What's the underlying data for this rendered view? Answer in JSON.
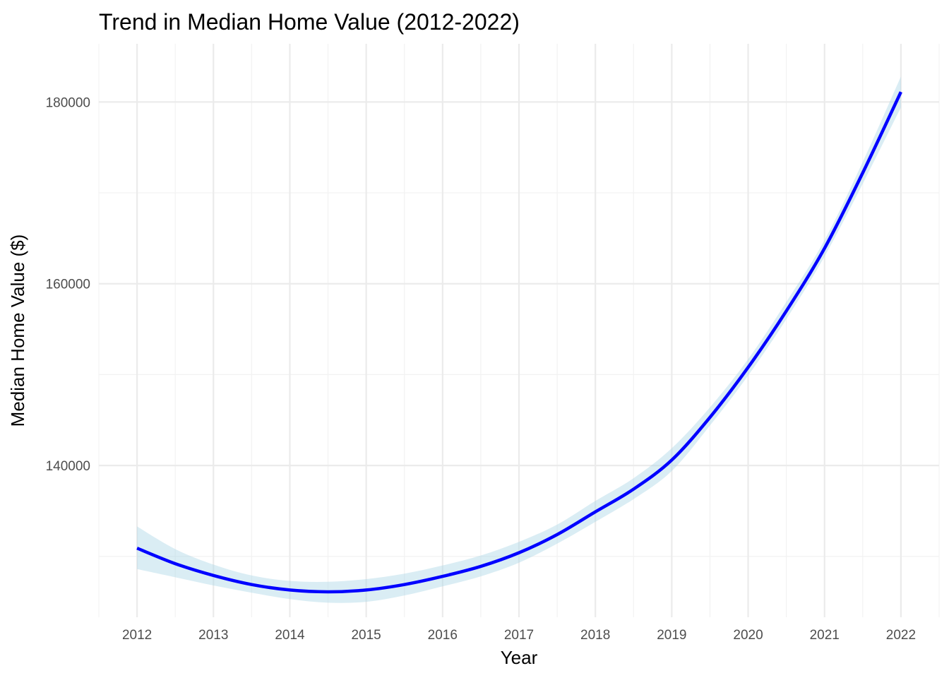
{
  "chart_data": {
    "type": "line",
    "title": "Trend in Median Home Value (2012-2022)",
    "xlabel": "Year",
    "ylabel": "Median Home Value ($)",
    "xlim": [
      2011.5,
      2022.5
    ],
    "ylim": [
      123300,
      186400
    ],
    "x_ticks": [
      2012,
      2013,
      2014,
      2015,
      2016,
      2017,
      2018,
      2019,
      2020,
      2021,
      2022
    ],
    "x_tick_labels": [
      "2012",
      "2013",
      "2014",
      "2015",
      "2016",
      "2017",
      "2018",
      "2019",
      "2020",
      "2021",
      "2022"
    ],
    "y_ticks": [
      140000,
      160000,
      180000
    ],
    "y_tick_labels": [
      "140000",
      "160000",
      "180000"
    ],
    "y_minor_ticks": [
      130000,
      150000,
      170000
    ],
    "grid": true,
    "line_color": "#0000ff",
    "ribbon_color": "#add8e6",
    "series": [
      {
        "x": [
          2012,
          2012.5,
          2013,
          2013.5,
          2014,
          2014.5,
          2015,
          2015.5,
          2016,
          2016.5,
          2017,
          2017.5,
          2018,
          2018.5,
          2019,
          2019.5,
          2020,
          2020.5,
          2021,
          2021.5,
          2022
        ],
        "y": [
          130900,
          129200,
          127900,
          126900,
          126300,
          126100,
          126300,
          126900,
          127800,
          128900,
          130400,
          132400,
          134900,
          137400,
          140600,
          145300,
          150800,
          157000,
          163900,
          172200,
          181100
        ],
        "lower": [
          128600,
          127700,
          126800,
          126000,
          125300,
          124900,
          125000,
          125700,
          126700,
          127800,
          129300,
          131400,
          133800,
          136300,
          139400,
          144400,
          149900,
          156100,
          163000,
          171000,
          179400
        ],
        "upper": [
          133300,
          130800,
          129100,
          127900,
          127300,
          127200,
          127500,
          128100,
          129000,
          130100,
          131600,
          133500,
          136100,
          138600,
          141900,
          146400,
          151700,
          158000,
          164800,
          173400,
          182800
        ]
      }
    ]
  }
}
